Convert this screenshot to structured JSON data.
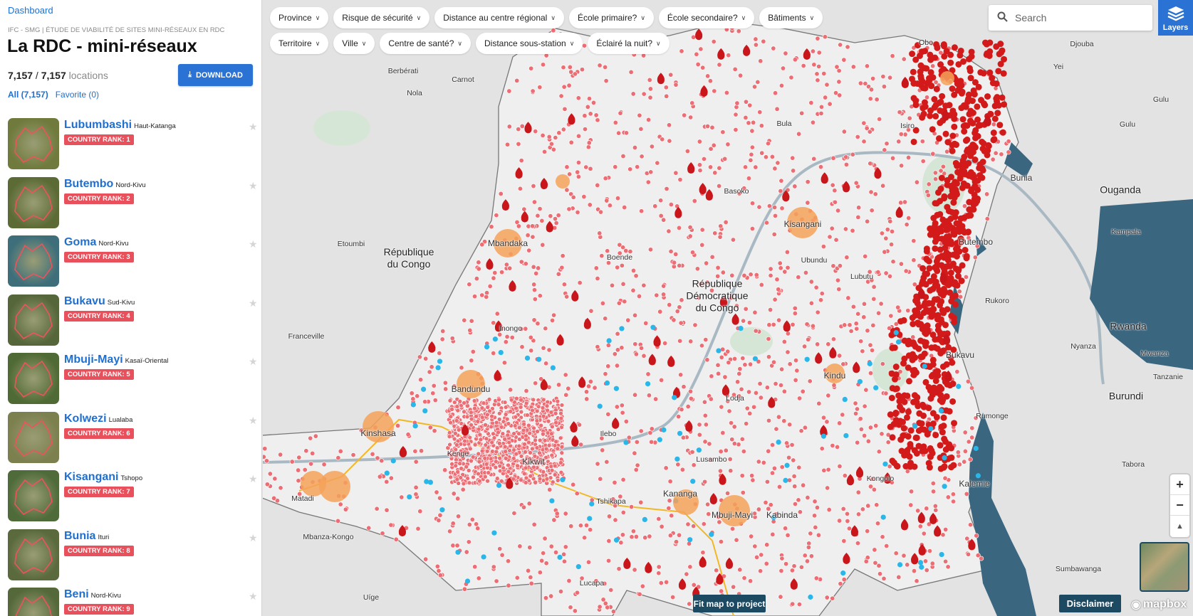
{
  "sidebar": {
    "dashboard_link": "Dashboard",
    "subtitle": "IFC - SMG | ÉTUDE DE VIABILITÉ DE SITES MINI-RÉSEAUX EN RDC",
    "title": "La RDC - mini-réseaux",
    "count_shown": "7,157",
    "count_sep": " / ",
    "count_total": "7,157",
    "count_unit": " locations",
    "download_label": "DOWNLOAD",
    "tabs": {
      "all": "All (7,157)",
      "favorite": "Favorite (0)"
    },
    "items": [
      {
        "name": "Lubumbashi",
        "province": "Haut-Katanga",
        "rank": "COUNTRY RANK: 1"
      },
      {
        "name": "Butembo",
        "province": "Nord-Kivu",
        "rank": "COUNTRY RANK: 2"
      },
      {
        "name": "Goma",
        "province": "Nord-Kivu",
        "rank": "COUNTRY RANK: 3"
      },
      {
        "name": "Bukavu",
        "province": "Sud-Kivu",
        "rank": "COUNTRY RANK: 4"
      },
      {
        "name": "Mbuji-Mayi",
        "province": "Kasaï-Oriental",
        "rank": "COUNTRY RANK: 5"
      },
      {
        "name": "Kolwezi",
        "province": "Lualaba",
        "rank": "COUNTRY RANK: 6"
      },
      {
        "name": "Kisangani",
        "province": "Tshopo",
        "rank": "COUNTRY RANK: 7"
      },
      {
        "name": "Bunia",
        "province": "Ituri",
        "rank": "COUNTRY RANK: 8"
      },
      {
        "name": "Beni",
        "province": "Nord-Kivu",
        "rank": "COUNTRY RANK: 9"
      }
    ]
  },
  "filters": [
    "Province",
    "Risque de sécurité",
    "Distance au centre régional",
    "École primaire?",
    "École secondaire?",
    "Bâtiments",
    "Territoire",
    "Ville",
    "Centre de santé?",
    "Distance sous-station",
    "Éclairé la nuit?"
  ],
  "search": {
    "placeholder": "Search"
  },
  "layers_label": "Layers",
  "zoom": {
    "in": "+",
    "out": "−",
    "compass": "▲"
  },
  "fit_label": "Fit map to project",
  "disclaimer_label": "Disclaimer",
  "attribution": "mapbox",
  "map_labels": {
    "countries": [
      "République\ndu Congo",
      "République\nDémocratique\ndu Congo",
      "Ouganda",
      "Rwanda",
      "Burundi"
    ],
    "cities": [
      "Kinshasa",
      "Kisangani",
      "Mbandaka",
      "Bandundu",
      "Kikwit",
      "Kananga",
      "Mbuji-Mayi",
      "Kabinda",
      "Kindu",
      "Bukavu",
      "Bunia",
      "Butembo",
      "Kalemie",
      "Matadi",
      "Djouba",
      "Kampala",
      "Etoumbi",
      "Franceville",
      "Uíge",
      "Lucapa",
      "Tabora",
      "Sumbawanga",
      "Mwanza",
      "Gulu",
      "Obo",
      "Bula",
      "Boende",
      "Inongo",
      "Ilebo",
      "Kenge",
      "Tshikapa",
      "Lusambo",
      "Kongolo",
      "Nola",
      "Berbérati",
      "Carnot",
      "Basoko",
      "Ubundu",
      "Lubutu",
      "Isiro",
      "Rukoro",
      "Nyanza",
      "Rumonge",
      "Yei",
      "Mbanza-Kongo",
      "Lodja",
      "Gulu",
      "Tanzanie"
    ]
  },
  "colors": {
    "accent": "#2a72d4",
    "rank": "#e8505b",
    "site": "#e8666e",
    "fire": "#d31a1a",
    "substation": "#29b6e8",
    "town": "#f4a259",
    "grid": "#f2b824",
    "lake": "#3a6680"
  }
}
